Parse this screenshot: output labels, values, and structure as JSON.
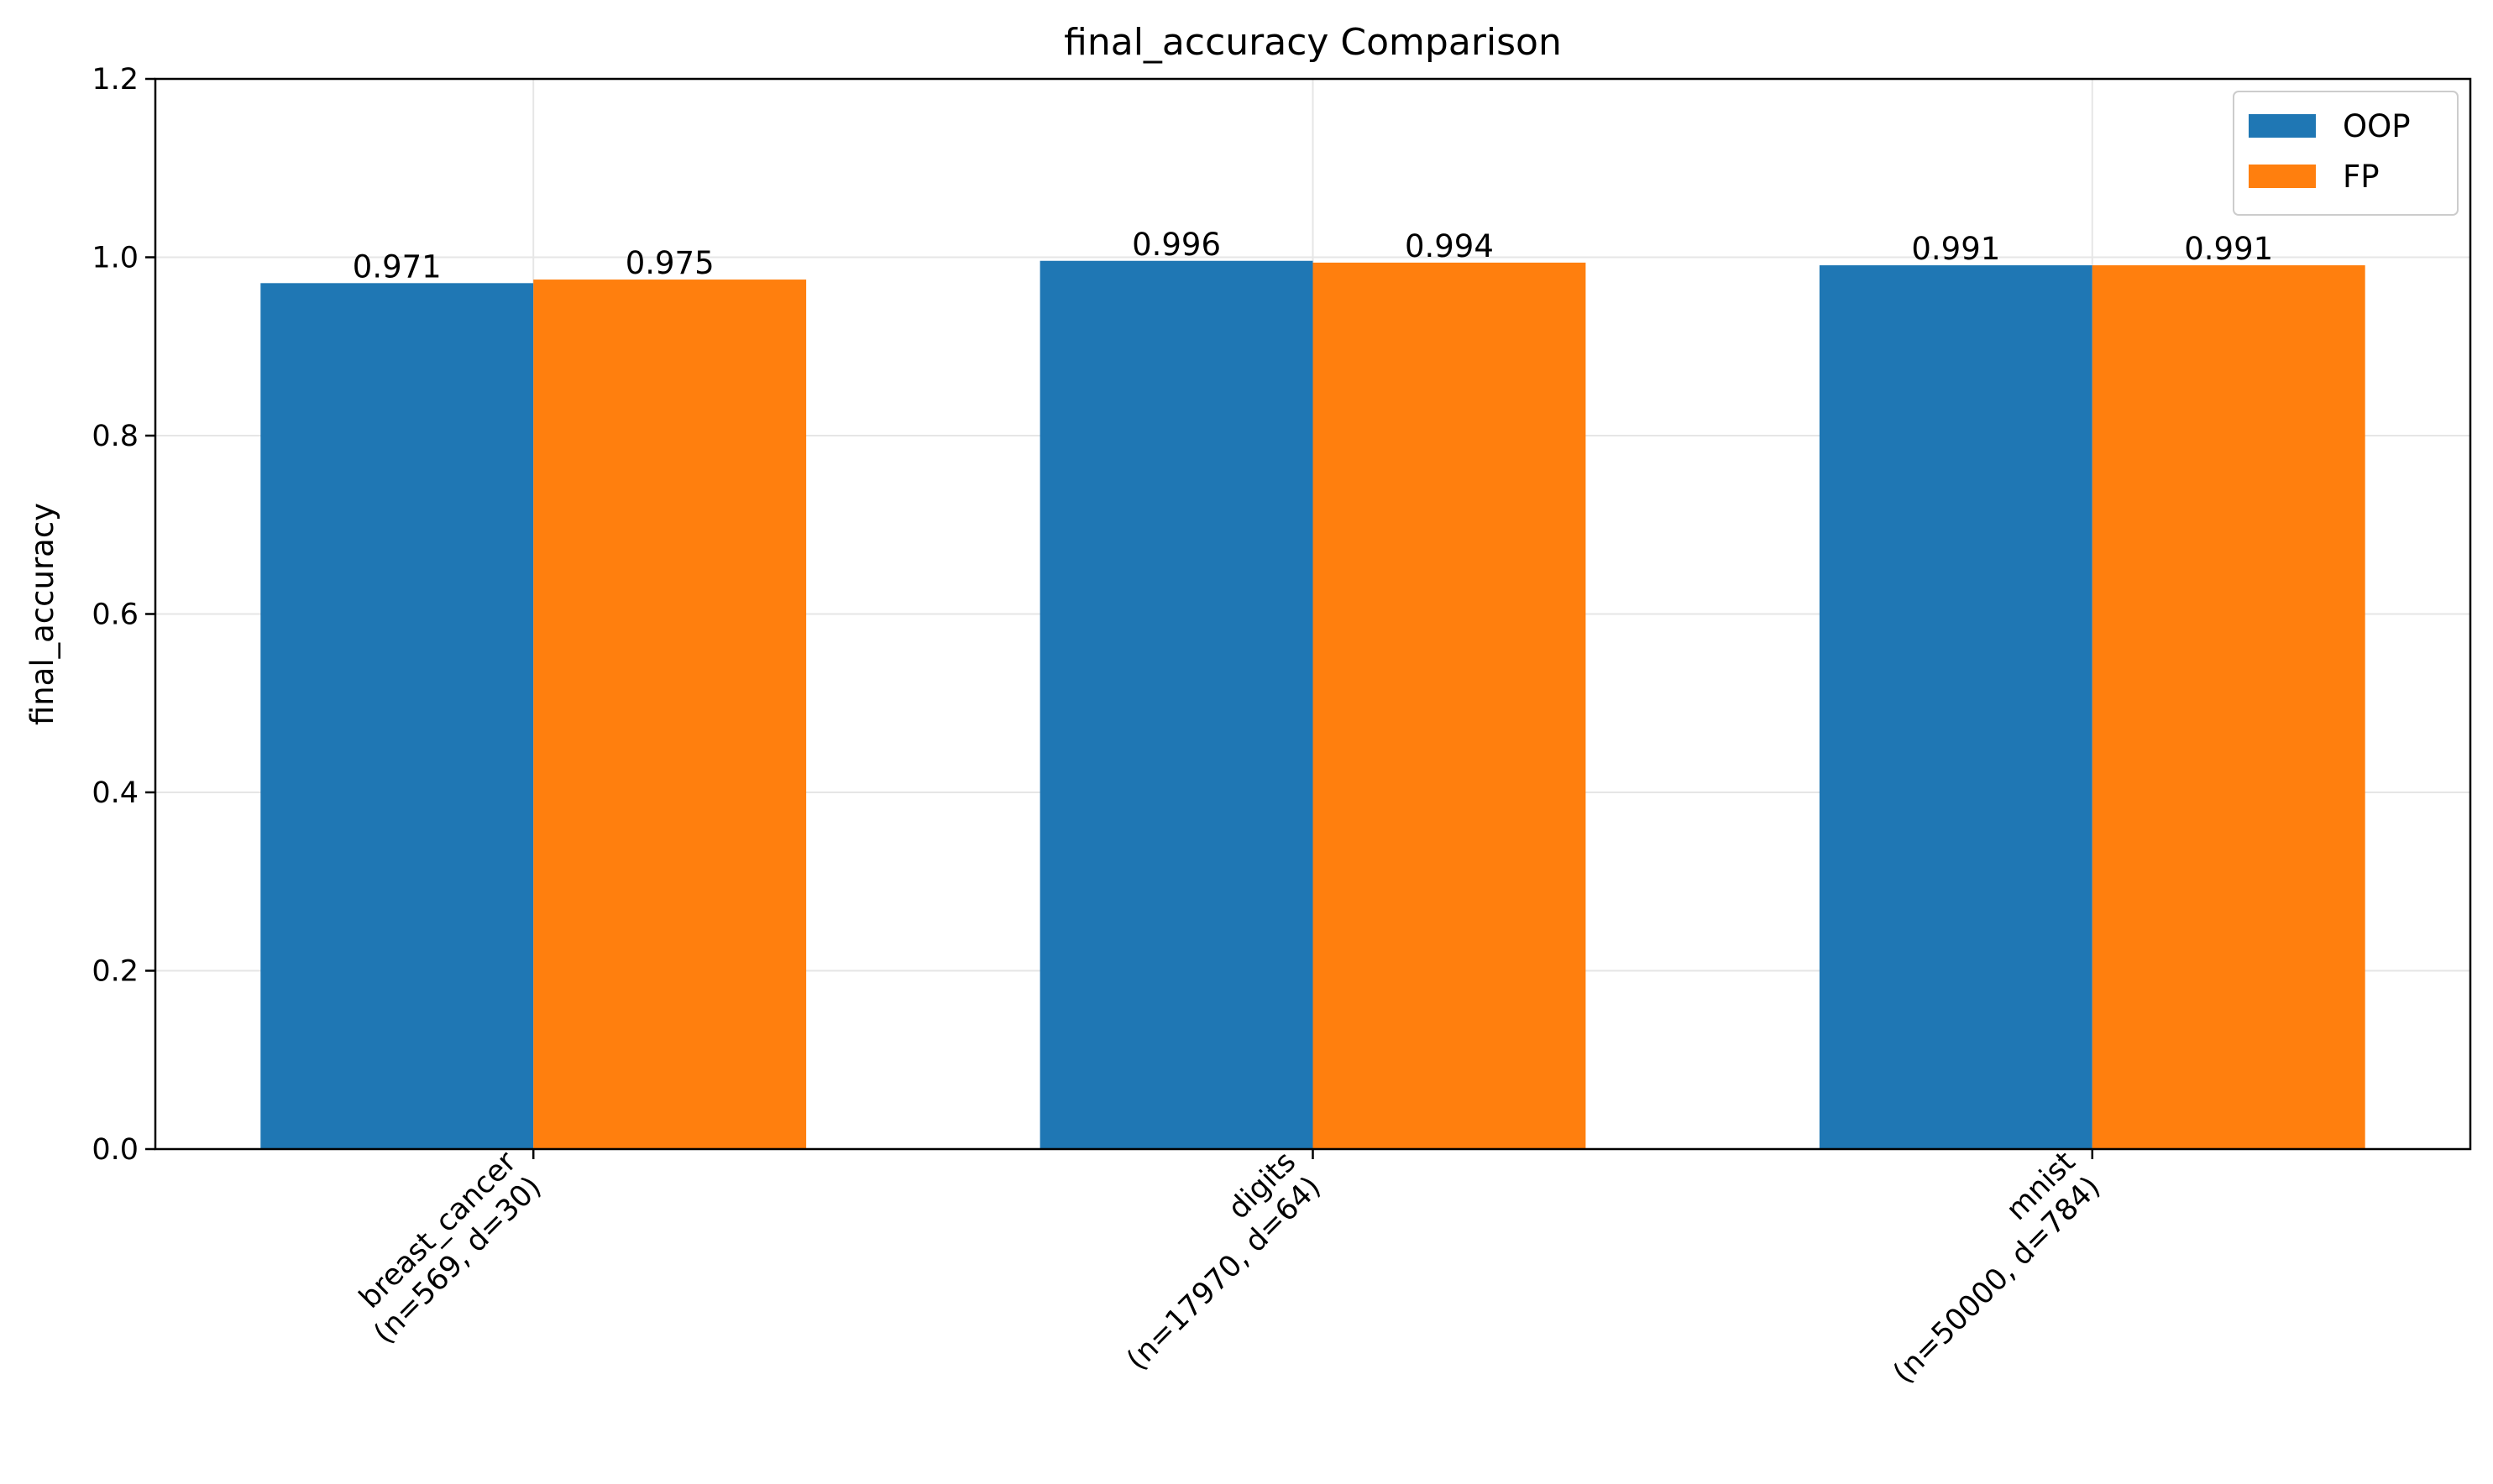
{
  "chart_data": {
    "type": "bar",
    "title": "final_accuracy Comparison",
    "xlabel": "",
    "ylabel": "final_accuracy",
    "ylim": [
      0,
      1.2
    ],
    "yticks": [
      "0.0",
      "0.2",
      "0.4",
      "0.6",
      "0.8",
      "1.0",
      "1.2"
    ],
    "categories": [
      [
        "breast_cancer",
        "(n=569, d=30)"
      ],
      [
        "digits",
        "(n=17970, d=64)"
      ],
      [
        "mnist",
        "(n=50000, d=784)"
      ]
    ],
    "series": [
      {
        "name": "OOP",
        "color": "#1f77b4",
        "values": [
          0.971,
          0.996,
          0.991
        ],
        "labels": [
          "0.971",
          "0.996",
          "0.991"
        ]
      },
      {
        "name": "FP",
        "color": "#ff7f0e",
        "values": [
          0.975,
          0.994,
          0.991
        ],
        "labels": [
          "0.975",
          "0.994",
          "0.991"
        ]
      }
    ],
    "grid": true,
    "legend": "top-right"
  }
}
